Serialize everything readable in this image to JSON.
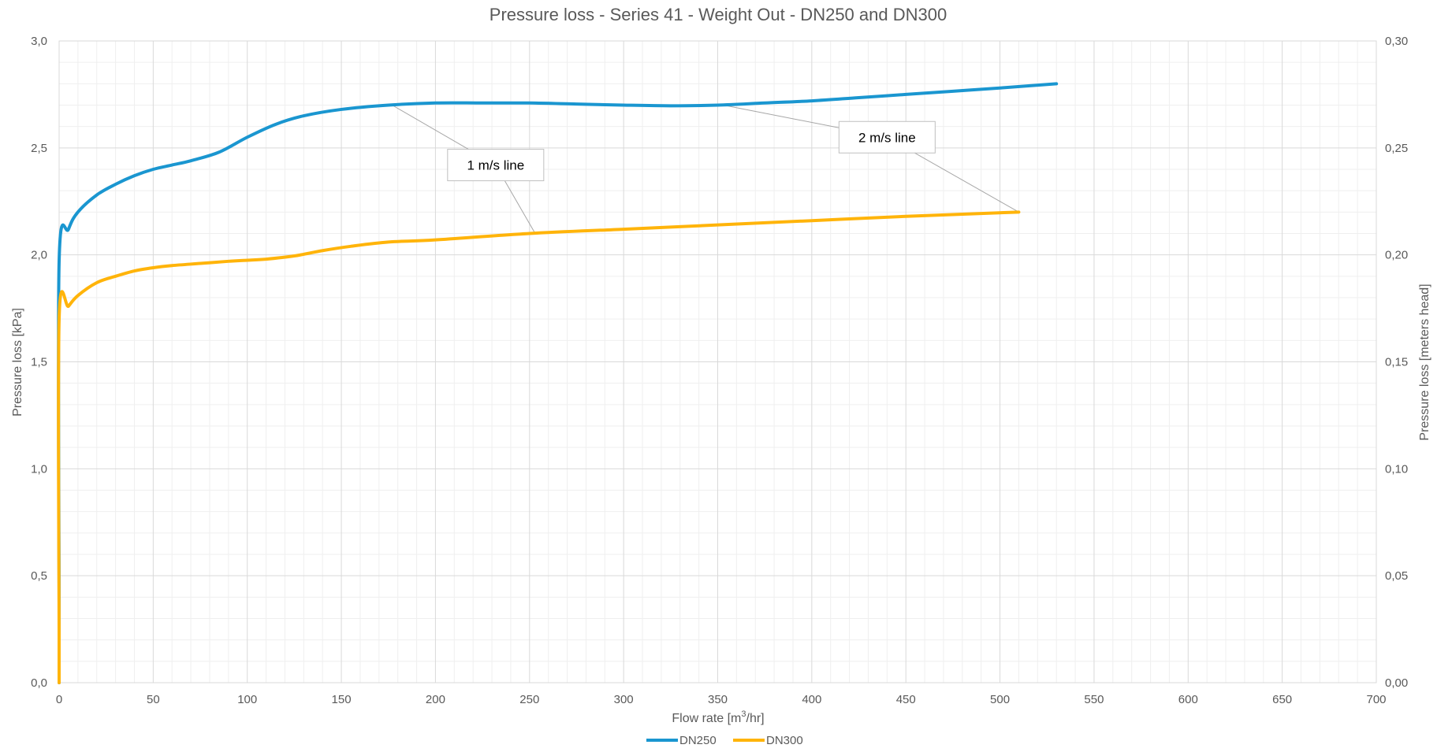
{
  "chart_data": {
    "type": "line",
    "title": "Pressure loss - Series 41 - Weight Out - DN250 and DN300",
    "xlabel": "Flow rate [m³/hr]",
    "xlabel_main": "Flow rate [m",
    "xlabel_sup": "3",
    "xlabel_end": "/hr]",
    "ylabel": "Pressure loss [kPa]",
    "y2label": "Pressure loss [meters head]",
    "xlim": [
      0,
      700
    ],
    "ylim": [
      0,
      3.0
    ],
    "y2lim": [
      0,
      0.3
    ],
    "x_ticks": [
      {
        "v": 0,
        "label": "0"
      },
      {
        "v": 50,
        "label": "50"
      },
      {
        "v": 100,
        "label": "100"
      },
      {
        "v": 150,
        "label": "150"
      },
      {
        "v": 200,
        "label": "200"
      },
      {
        "v": 250,
        "label": "250"
      },
      {
        "v": 300,
        "label": "300"
      },
      {
        "v": 350,
        "label": "350"
      },
      {
        "v": 400,
        "label": "400"
      },
      {
        "v": 450,
        "label": "450"
      },
      {
        "v": 500,
        "label": "500"
      },
      {
        "v": 550,
        "label": "550"
      },
      {
        "v": 600,
        "label": "600"
      },
      {
        "v": 650,
        "label": "650"
      },
      {
        "v": 700,
        "label": "700"
      }
    ],
    "y_ticks": [
      {
        "v": 0,
        "label": "0,0"
      },
      {
        "v": 0.5,
        "label": "0,5"
      },
      {
        "v": 1.0,
        "label": "1,0"
      },
      {
        "v": 1.5,
        "label": "1,5"
      },
      {
        "v": 2.0,
        "label": "2,0"
      },
      {
        "v": 2.5,
        "label": "2,5"
      },
      {
        "v": 3.0,
        "label": "3,0"
      }
    ],
    "y2_ticks": [
      {
        "v": 0,
        "label": "0,00"
      },
      {
        "v": 0.05,
        "label": "0,05"
      },
      {
        "v": 0.1,
        "label": "0,10"
      },
      {
        "v": 0.15,
        "label": "0,15"
      },
      {
        "v": 0.2,
        "label": "0,20"
      },
      {
        "v": 0.25,
        "label": "0,25"
      },
      {
        "v": 0.3,
        "label": "0,30"
      }
    ],
    "grid": true,
    "legend": "bottom",
    "series": [
      {
        "name": "DN250",
        "color": "#1a96d0",
        "points": [
          [
            0,
            0.0
          ],
          [
            0,
            0.38
          ],
          [
            0,
            1.97
          ],
          [
            5,
            2.12
          ],
          [
            10,
            2.2
          ],
          [
            20,
            2.28
          ],
          [
            30,
            2.33
          ],
          [
            40,
            2.37
          ],
          [
            50,
            2.4
          ],
          [
            60,
            2.42
          ],
          [
            70,
            2.44
          ],
          [
            85,
            2.48
          ],
          [
            100,
            2.55
          ],
          [
            115,
            2.61
          ],
          [
            130,
            2.65
          ],
          [
            150,
            2.68
          ],
          [
            175,
            2.7
          ],
          [
            200,
            2.71
          ],
          [
            225,
            2.71
          ],
          [
            250,
            2.71
          ],
          [
            275,
            2.705
          ],
          [
            300,
            2.7
          ],
          [
            325,
            2.697
          ],
          [
            350,
            2.7
          ],
          [
            375,
            2.71
          ],
          [
            400,
            2.72
          ],
          [
            425,
            2.735
          ],
          [
            450,
            2.75
          ],
          [
            475,
            2.765
          ],
          [
            500,
            2.78
          ],
          [
            530,
            2.8
          ]
        ]
      },
      {
        "name": "DN300",
        "color": "#ffb40a",
        "points": [
          [
            0,
            0.0
          ],
          [
            0,
            0.2
          ],
          [
            0,
            1.7
          ],
          [
            5,
            1.76
          ],
          [
            10,
            1.81
          ],
          [
            20,
            1.87
          ],
          [
            30,
            1.9
          ],
          [
            40,
            1.925
          ],
          [
            50,
            1.94
          ],
          [
            60,
            1.95
          ],
          [
            75,
            1.96
          ],
          [
            90,
            1.97
          ],
          [
            100,
            1.975
          ],
          [
            110,
            1.98
          ],
          [
            125,
            1.995
          ],
          [
            140,
            2.02
          ],
          [
            155,
            2.04
          ],
          [
            175,
            2.06
          ],
          [
            200,
            2.07
          ],
          [
            250,
            2.1
          ],
          [
            300,
            2.12
          ],
          [
            350,
            2.14
          ],
          [
            400,
            2.16
          ],
          [
            450,
            2.18
          ],
          [
            510,
            2.2
          ]
        ]
      }
    ],
    "annotations": [
      {
        "text": "1 m/s line",
        "points": [
          [
            177,
            2.7
          ],
          [
            253,
            2.1
          ]
        ],
        "box_x": 232,
        "box_y": 2.42
      },
      {
        "text": "2 m/s line",
        "points": [
          [
            353,
            2.7
          ],
          [
            510,
            2.2
          ]
        ],
        "box_x": 440,
        "box_y": 2.55
      }
    ]
  }
}
